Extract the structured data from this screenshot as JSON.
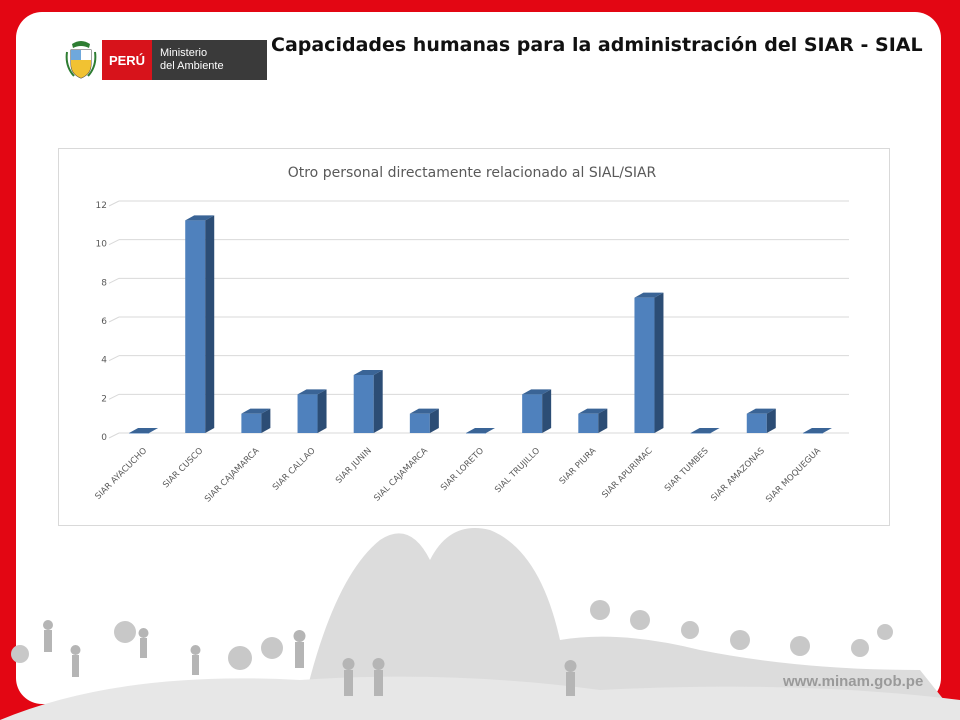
{
  "header": {
    "logo_country": "PERÚ",
    "logo_ministry_line1": "Ministerio",
    "logo_ministry_line2": "del Ambiente",
    "page_title": "Capacidades humanas para la administración del SIAR - SIAL"
  },
  "footer": {
    "url": "www.minam.gob.pe"
  },
  "colors": {
    "bar_front": "#4f81bd",
    "bar_side": "#2c4d75",
    "bar_top": "#3a6496",
    "background_red": "#e30613"
  },
  "chart_data": {
    "type": "bar",
    "title": "Otro personal directamente relacionado al SIAL/SIAR",
    "xlabel": "",
    "ylabel": "",
    "ylim": [
      0,
      12
    ],
    "yticks": [
      0,
      2,
      4,
      6,
      8,
      10,
      12
    ],
    "grid": true,
    "style": "3d-column",
    "categories": [
      "SIAR AYACUCHO",
      "SIAR CUSCO",
      "SIAR CAJAMARCA",
      "SIAR CALLAO",
      "SIAR JUNIN",
      "SIAL CAJAMARCA",
      "SIAR LORETO",
      "SIAL TRUJILLO",
      "SIAR PIURA",
      "SIAR APURIMAC",
      "SIAR TUMBES",
      "SIAR AMAZONAS",
      "SIAR MOQUEGUA"
    ],
    "values": [
      0,
      11,
      1,
      2,
      3,
      1,
      0,
      2,
      1,
      7,
      0,
      1,
      0
    ]
  }
}
